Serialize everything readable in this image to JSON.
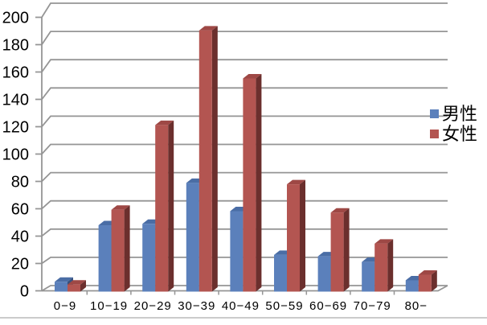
{
  "chart_data": {
    "type": "bar",
    "style": "3d",
    "title": "",
    "xlabel": "",
    "ylabel": "",
    "categories": [
      "0−9",
      "10−19",
      "20−29",
      "30−39",
      "40−49",
      "50−59",
      "60−69",
      "70−79",
      "80−"
    ],
    "series": [
      {
        "name": "男性",
        "color": "#5B80BB",
        "values": [
          7,
          47,
          48,
          77,
          57,
          26,
          25,
          21,
          8
        ]
      },
      {
        "name": "女性",
        "color": "#B35551",
        "values": [
          5,
          58,
          118,
          185,
          151,
          76,
          56,
          34,
          12
        ]
      }
    ],
    "ylim": [
      0,
      200
    ],
    "ytick_step": 20,
    "yticks": [
      0,
      20,
      40,
      60,
      80,
      100,
      120,
      140,
      160,
      180,
      200
    ],
    "grid": true,
    "legend_position": "right"
  },
  "legend": {
    "items": [
      {
        "label": "男性",
        "color": "#5B80BB"
      },
      {
        "label": "女性",
        "color": "#B35551"
      }
    ]
  },
  "colors": {
    "male_front": "#5B80BB",
    "male_top": "#4A6DA5",
    "male_side": "#36517E",
    "female_front": "#B35551",
    "female_top": "#9E4845",
    "female_side": "#6B2F2D",
    "gridline": "#959595",
    "axis_text": "#000000",
    "separator": "#CBCBCB",
    "background": "#FFFFFF"
  }
}
